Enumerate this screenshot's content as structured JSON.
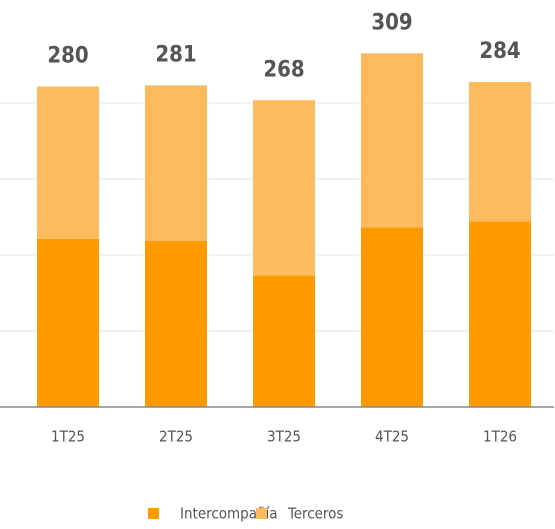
{
  "chart_data": {
    "type": "stacked_bar",
    "categories": [
      "1T25",
      "2T25",
      "3T25",
      "4T25",
      "1T26"
    ],
    "series": [
      {
        "name": "Intercompañía",
        "color": "#ff9900",
        "values": [
          147,
          145,
          115,
          157,
          162
        ]
      },
      {
        "name": "Terceros",
        "color": "#fdbb5e",
        "values": [
          133,
          136,
          153,
          152,
          122
        ]
      }
    ],
    "totals": [
      280,
      281,
      268,
      309,
      284
    ],
    "ylim": [
      0,
      332
    ]
  }
}
